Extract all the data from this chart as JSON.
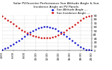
{
  "title_line1": "Solar PV/Inverter Performance Sun Altitude Angle & Sun",
  "title_line2": "Incidence Angle on PV Panels",
  "blue_label": "Sun Altitude Angle ---",
  "red_label": "Sun Incidence Angle ---",
  "blue_x": [
    4.0,
    4.5,
    5.0,
    5.5,
    6.0,
    6.5,
    7.0,
    7.5,
    8.0,
    8.5,
    9.0,
    9.5,
    10.0,
    10.5,
    11.0,
    11.5,
    12.0,
    12.5,
    13.0,
    13.5,
    14.0,
    14.5,
    15.0,
    15.5,
    16.0,
    16.5,
    17.0,
    17.5,
    18.0,
    18.5,
    19.0,
    19.5,
    20.0
  ],
  "blue_y": [
    2,
    5,
    8,
    12,
    16,
    21,
    26,
    31,
    36,
    41,
    46,
    50,
    54,
    57,
    59,
    61,
    61,
    60,
    58,
    55,
    51,
    46,
    41,
    36,
    31,
    25,
    20,
    14,
    9,
    5,
    2,
    1,
    0
  ],
  "red_x": [
    4.0,
    4.5,
    5.0,
    5.5,
    6.0,
    6.5,
    7.0,
    7.5,
    8.0,
    8.5,
    9.0,
    9.5,
    10.0,
    10.5,
    11.0,
    11.5,
    12.0,
    12.5,
    13.0,
    13.5,
    14.0,
    14.5,
    15.0,
    15.5,
    16.0,
    16.5,
    17.0,
    17.5,
    18.0,
    18.5,
    19.0,
    19.5,
    20.0
  ],
  "red_y": [
    88,
    83,
    78,
    73,
    68,
    63,
    58,
    53,
    49,
    45,
    41,
    38,
    36,
    34,
    33,
    32,
    32,
    33,
    34,
    36,
    39,
    43,
    47,
    52,
    57,
    62,
    67,
    72,
    77,
    82,
    86,
    89,
    90
  ],
  "xlim": [
    4,
    20
  ],
  "ylim": [
    0,
    90
  ],
  "yticks": [
    0,
    10,
    20,
    30,
    40,
    50,
    60,
    70,
    80,
    90
  ],
  "ytick_labels": [
    "0",
    "10",
    "20",
    "30",
    "40",
    "50",
    "60",
    "70",
    "80",
    "90"
  ],
  "xtick_positions": [
    4,
    6,
    8,
    10,
    12,
    14,
    16,
    18,
    20
  ],
  "xtick_labels": [
    "4:00",
    "6:00",
    "8:00",
    "10:00",
    "12:00",
    "14:00",
    "16:00",
    "18:00",
    "20:00"
  ],
  "blue_color": "#0000cc",
  "red_color": "#cc0000",
  "grid_color": "#bbbbbb",
  "bg_color": "#ffffff",
  "markersize": 1.5,
  "title_fontsize": 3.2,
  "tick_fontsize": 3.0,
  "legend_fontsize": 3.0
}
